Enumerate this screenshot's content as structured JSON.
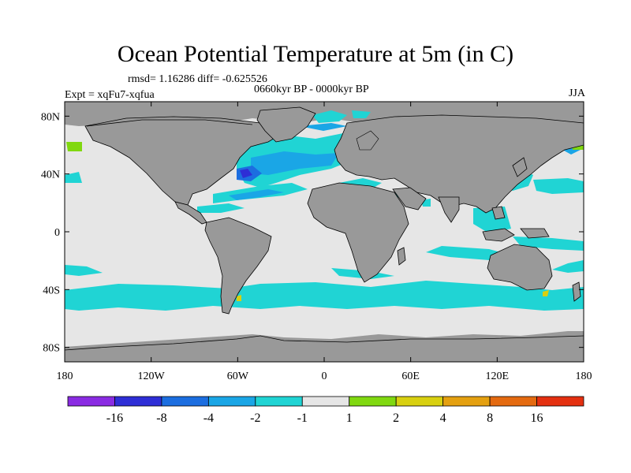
{
  "title": "Ocean Potential Temperature at 5m (in C)",
  "stats": "rmsd= 1.16286 diff= -0.625526",
  "period": "0660kyr BP - 0000kyr BP",
  "experiment": "Expt = xqFu7-xqfua",
  "season": "JJA",
  "chart_data": {
    "type": "heatmap",
    "projection": "cylindrical equidistant",
    "x_range": [
      -180,
      180
    ],
    "y_range": [
      -90,
      90
    ],
    "x_ticks": [
      {
        "value": -180,
        "label": "180"
      },
      {
        "value": -120,
        "label": "120W"
      },
      {
        "value": -60,
        "label": "60W"
      },
      {
        "value": 0,
        "label": "0"
      },
      {
        "value": 60,
        "label": "60E"
      },
      {
        "value": 120,
        "label": "120E"
      },
      {
        "value": 180,
        "label": "180"
      }
    ],
    "y_ticks": [
      {
        "value": 80,
        "label": "80N"
      },
      {
        "value": 40,
        "label": "40N"
      },
      {
        "value": 0,
        "label": "0"
      },
      {
        "value": -40,
        "label": "40S"
      },
      {
        "value": -80,
        "label": "80S"
      }
    ],
    "land_color": "#999999",
    "background_color": "#e6e6e6",
    "colorbar": {
      "boundaries": [
        "-16",
        "-8",
        "-4",
        "-2",
        "-1",
        "1",
        "2",
        "4",
        "8",
        "16"
      ],
      "colors": [
        "#8a2be2",
        "#2e2ed6",
        "#1c6ee0",
        "#1aa6e6",
        "#20d4d4",
        "#e6e6e6",
        "#80d810",
        "#d8d010",
        "#e4a010",
        "#e46a10",
        "#e43010"
      ]
    }
  }
}
